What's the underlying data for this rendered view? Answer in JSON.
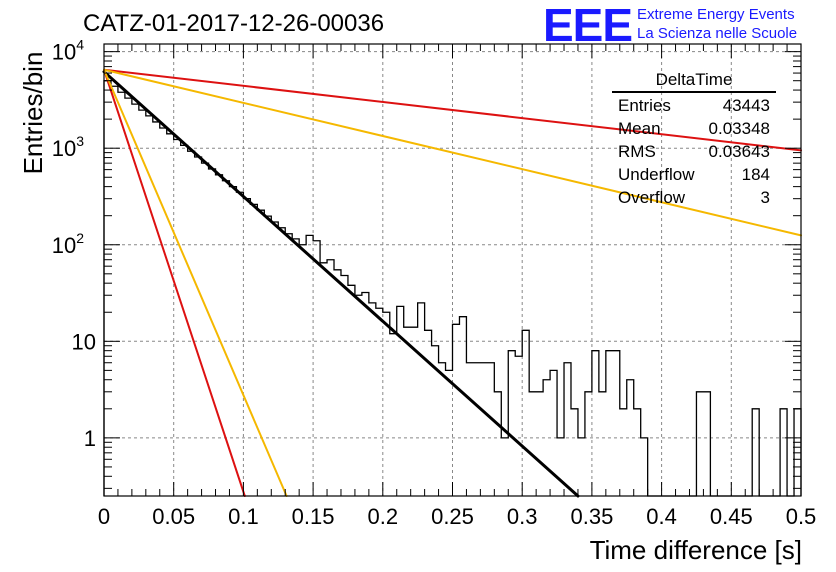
{
  "title": "CATZ-01-2017-12-26-00036",
  "logo": {
    "mark": "EEE",
    "line1": "Extreme Energy Events",
    "line2": "La Scienza nelle Scuole",
    "color": "#1a1aff"
  },
  "stats": {
    "name": "DeltaTime",
    "rows": [
      {
        "label": "Entries",
        "value": "43443"
      },
      {
        "label": "Mean",
        "value": "0.03348"
      },
      {
        "label": "RMS",
        "value": "0.03643"
      },
      {
        "label": "Underflow",
        "value": "184"
      },
      {
        "label": "Overflow",
        "value": "3"
      }
    ]
  },
  "chart_data": {
    "type": "histogram",
    "xlabel": "Time difference [s]",
    "ylabel": "Entries/bin",
    "xlim": [
      0,
      0.5
    ],
    "ylim": [
      0.25,
      12000
    ],
    "y_scale": "log",
    "grid": true,
    "x_ticks": [
      "0",
      "0.05",
      "0.1",
      "0.15",
      "0.2",
      "0.25",
      "0.3",
      "0.35",
      "0.4",
      "0.45",
      "0.5"
    ],
    "y_ticks": [
      {
        "value": 1,
        "label": "1"
      },
      {
        "value": 10,
        "label": "10"
      },
      {
        "value": 100,
        "label": "10^2"
      },
      {
        "value": 1000,
        "label": "10^3"
      },
      {
        "value": 10000,
        "label": "10^4"
      }
    ],
    "histogram": {
      "bin_width": 0.005,
      "color": "#000000",
      "counts": [
        5000,
        4380,
        3800,
        3300,
        2860,
        2480,
        2160,
        1870,
        1620,
        1410,
        1230,
        1070,
        930,
        810,
        700,
        610,
        530,
        460,
        400,
        350,
        300,
        262,
        228,
        198,
        172,
        150,
        130,
        115,
        100,
        125,
        110,
        65,
        70,
        55,
        48,
        38,
        30,
        32,
        25,
        22,
        20,
        12,
        23,
        14,
        14,
        25,
        13,
        9,
        6,
        5,
        15,
        18,
        6,
        6,
        6,
        6,
        3,
        1,
        8,
        7,
        13,
        3,
        3,
        4,
        5,
        1,
        6,
        2,
        1,
        3,
        8,
        3,
        8,
        8,
        2,
        4,
        2,
        1,
        0.1,
        0.1,
        0.1,
        0.1,
        0.1,
        0.1,
        0.1,
        3,
        3,
        0.1,
        0.1,
        0.1,
        0.1,
        0.1,
        0.1,
        2,
        0.1,
        0.1,
        0.1,
        2,
        0.1,
        2
      ]
    },
    "fits": [
      {
        "color": "#000000",
        "x": [
          0,
          0.34
        ],
        "y": [
          6200,
          0.25
        ],
        "width": 3
      },
      {
        "color": "#dd1111",
        "x": [
          0,
          0.5
        ],
        "y": [
          6500,
          950
        ],
        "width": 2
      },
      {
        "color": "#f5b800",
        "x": [
          0,
          0.5
        ],
        "y": [
          6500,
          125
        ],
        "width": 2
      },
      {
        "color": "#dd1111",
        "x": [
          0,
          0.101
        ],
        "y": [
          6500,
          0.25
        ],
        "width": 2
      },
      {
        "color": "#f5b800",
        "x": [
          0,
          0.131
        ],
        "y": [
          6500,
          0.25
        ],
        "width": 2
      }
    ]
  }
}
